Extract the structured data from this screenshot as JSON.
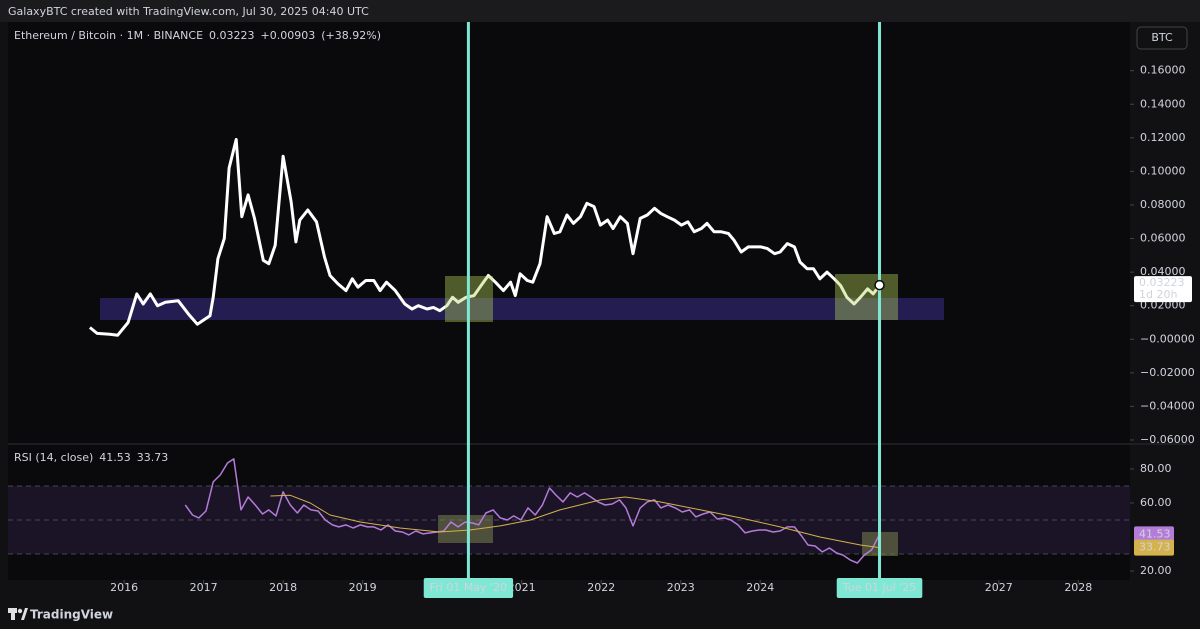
{
  "header": {
    "title": "GalaxyBTC created with TradingView.com, Jul 30, 2025 04:40 UTC"
  },
  "watermark": "TradingView",
  "chart_data": [
    {
      "type": "line",
      "currency": "BTC",
      "change": "+0.00903",
      "change_pct": "(+38.92%)",
      "countdown": "1d 20h",
      "series": [
        {
          "name": "Ethereum / Bitcoin · 1M · BINANCE",
          "color": "#ffffff",
          "x": [
            2015.57,
            2015.66,
            2015.82,
            2015.92,
            2016.05,
            2016.16,
            2016.24,
            2016.33,
            2016.42,
            2016.52,
            2016.68,
            2016.81,
            2016.92,
            2017.08,
            2017.12,
            2017.18,
            2017.26,
            2017.32,
            2017.41,
            2017.48,
            2017.56,
            2017.64,
            2017.75,
            2017.82,
            2017.9,
            2018.0,
            2018.1,
            2018.16,
            2018.21,
            2018.31,
            2018.42,
            2018.52,
            2018.59,
            2018.69,
            2018.79,
            2018.87,
            2018.94,
            2019.04,
            2019.14,
            2019.22,
            2019.3,
            2019.41,
            2019.53,
            2019.62,
            2019.7,
            2019.81,
            2019.89,
            2019.97,
            2020.06,
            2020.13,
            2020.2,
            2020.3,
            2020.4,
            2020.49,
            2020.58,
            2020.67,
            2020.77,
            2020.86,
            2020.92,
            2020.98,
            2021.07,
            2021.14,
            2021.23,
            2021.32,
            2021.41,
            2021.48,
            2021.57,
            2021.65,
            2021.74,
            2021.82,
            2021.91,
            2021.99,
            2022.08,
            2022.15,
            2022.24,
            2022.33,
            2022.4,
            2022.49,
            2022.58,
            2022.67,
            2022.75,
            2022.83,
            2022.92,
            2023.01,
            2023.09,
            2023.17,
            2023.26,
            2023.33,
            2023.42,
            2023.51,
            2023.6,
            2023.67,
            2023.76,
            2023.85,
            2023.92,
            2024.01,
            2024.09,
            2024.18,
            2024.25,
            2024.34,
            2024.43,
            2024.5,
            2024.59,
            2024.67,
            2024.75,
            2024.84,
            2024.93,
            2025.01,
            2025.09,
            2025.18,
            2025.26,
            2025.35,
            2025.42,
            2025.5
          ],
          "values": [
            0.007,
            0.0035,
            0.003,
            0.0024,
            0.01,
            0.027,
            0.021,
            0.027,
            0.02,
            0.022,
            0.023,
            0.015,
            0.009,
            0.014,
            0.025,
            0.048,
            0.06,
            0.102,
            0.119,
            0.073,
            0.086,
            0.072,
            0.047,
            0.045,
            0.056,
            0.109,
            0.082,
            0.058,
            0.071,
            0.077,
            0.07,
            0.049,
            0.038,
            0.033,
            0.029,
            0.036,
            0.031,
            0.035,
            0.035,
            0.029,
            0.034,
            0.029,
            0.021,
            0.018,
            0.02,
            0.018,
            0.019,
            0.017,
            0.02,
            0.025,
            0.022,
            0.025,
            0.026,
            0.032,
            0.038,
            0.034,
            0.029,
            0.034,
            0.026,
            0.039,
            0.035,
            0.034,
            0.045,
            0.073,
            0.063,
            0.064,
            0.074,
            0.069,
            0.073,
            0.081,
            0.079,
            0.068,
            0.071,
            0.066,
            0.073,
            0.069,
            0.051,
            0.072,
            0.074,
            0.078,
            0.075,
            0.073,
            0.071,
            0.068,
            0.07,
            0.064,
            0.066,
            0.069,
            0.064,
            0.064,
            0.063,
            0.059,
            0.052,
            0.055,
            0.055,
            0.055,
            0.054,
            0.051,
            0.052,
            0.057,
            0.055,
            0.046,
            0.042,
            0.042,
            0.036,
            0.04,
            0.036,
            0.032,
            0.025,
            0.021,
            0.025,
            0.03,
            0.027,
            0.03223
          ]
        }
      ],
      "xlim": [
        2014.54,
        2028.65
      ],
      "xticks": [
        2016,
        2017,
        2018,
        2019,
        2021,
        2022,
        2023,
        2024,
        2027,
        2028
      ],
      "ylim": [
        -0.0618,
        0.189
      ],
      "yticks": [
        {
          "value": 0.16,
          "label": "0.16000"
        },
        {
          "value": 0.14,
          "label": "0.14000"
        },
        {
          "value": 0.12,
          "label": "0.12000"
        },
        {
          "value": 0.1,
          "label": "0.10000"
        },
        {
          "value": 0.08,
          "label": "0.08000"
        },
        {
          "value": 0.06,
          "label": "0.06000"
        },
        {
          "value": 0.04,
          "label": "0.04000"
        },
        {
          "value": 0.02,
          "label": "0.02000"
        },
        {
          "value": 0,
          "label": "−0.00000"
        },
        {
          "value": -0.02,
          "label": "−0.02000"
        },
        {
          "value": -0.04,
          "label": "−0.04000"
        },
        {
          "value": -0.06,
          "label": "−0.06000"
        }
      ],
      "grid": false,
      "markers": [
        {
          "x": 2020.33,
          "label": "Fri 01 May '20"
        },
        {
          "x": 2025.5,
          "label": "Tue 01 Jul '25"
        }
      ]
    },
    {
      "type": "line",
      "title": "RSI (14, close)",
      "series": [
        {
          "color": "#b57bd8",
          "x": [
            2016.77,
            2016.86,
            2016.94,
            2017.03,
            2017.12,
            2017.21,
            2017.3,
            2017.38,
            2017.47,
            2017.56,
            2017.65,
            2017.74,
            2017.82,
            2017.91,
            2018.0,
            2018.09,
            2018.18,
            2018.26,
            2018.35,
            2018.44,
            2018.53,
            2018.62,
            2018.7,
            2018.79,
            2018.88,
            2018.97,
            2019.06,
            2019.14,
            2019.23,
            2019.32,
            2019.41,
            2019.5,
            2019.58,
            2019.67,
            2019.76,
            2019.85,
            2019.94,
            2020.02,
            2020.11,
            2020.2,
            2020.29,
            2020.38,
            2020.46,
            2020.55,
            2020.64,
            2020.73,
            2020.82,
            2020.9,
            2020.99,
            2021.08,
            2021.17,
            2021.26,
            2021.35,
            2021.43,
            2021.52,
            2021.61,
            2021.7,
            2021.79,
            2021.87,
            2021.96,
            2022.05,
            2022.14,
            2022.23,
            2022.31,
            2022.4,
            2022.49,
            2022.58,
            2022.67,
            2022.75,
            2022.84,
            2022.93,
            2023.02,
            2023.11,
            2023.19,
            2023.28,
            2023.37,
            2023.46,
            2023.55,
            2023.63,
            2023.72,
            2023.81,
            2023.9,
            2023.99,
            2024.07,
            2024.16,
            2024.25,
            2024.34,
            2024.43,
            2024.52,
            2024.6,
            2024.69,
            2024.78,
            2024.87,
            2024.96,
            2025.04,
            2025.13,
            2025.22,
            2025.31,
            2025.4,
            2025.5
          ],
          "values": [
            58.8,
            52.9,
            51.2,
            55.3,
            72.4,
            76.5,
            83.5,
            85.9,
            55.9,
            63.5,
            58.8,
            53.5,
            55.9,
            52.4,
            66.5,
            58.8,
            54.1,
            58.8,
            55.9,
            55.3,
            50.0,
            47.1,
            45.9,
            47.1,
            45.3,
            47.1,
            45.9,
            45.9,
            44.1,
            47.1,
            43.5,
            42.9,
            41.2,
            43.5,
            41.8,
            42.4,
            42.9,
            43.5,
            48.8,
            45.9,
            48.8,
            48.2,
            47.1,
            54.1,
            55.9,
            51.2,
            50.0,
            52.4,
            50.0,
            57.1,
            52.9,
            58.8,
            68.8,
            64.7,
            60.6,
            65.9,
            63.5,
            65.9,
            63.5,
            60.6,
            58.8,
            59.4,
            61.8,
            57.1,
            46.5,
            57.1,
            60.6,
            61.8,
            57.1,
            58.8,
            57.1,
            54.7,
            55.9,
            51.8,
            53.5,
            54.7,
            50.6,
            51.2,
            50.0,
            47.1,
            42.4,
            43.5,
            44.1,
            44.1,
            42.9,
            43.5,
            45.9,
            45.9,
            40.6,
            35.3,
            34.7,
            31.2,
            33.5,
            30.6,
            29.4,
            26.5,
            24.7,
            29.4,
            32.4,
            41.53
          ]
        },
        {
          "color": "#d4b24c",
          "x": [
            2017.84,
            2018.09,
            2018.34,
            2018.59,
            2018.97,
            2019.47,
            2019.97,
            2020.35,
            2020.73,
            2021.11,
            2021.48,
            2021.99,
            2022.3,
            2022.74,
            2023.25,
            2023.75,
            2024.25,
            2024.75,
            2025.26,
            2025.5
          ],
          "values": [
            64.1,
            64.5,
            60.0,
            52.9,
            48.8,
            45.3,
            42.9,
            44.1,
            46.5,
            50.0,
            55.9,
            61.8,
            63.5,
            60.6,
            55.9,
            51.2,
            45.9,
            40.0,
            35.3,
            33.73
          ]
        }
      ],
      "xlim": [
        2014.54,
        2028.65
      ],
      "ylim": [
        14.7,
        93.5
      ],
      "yticks": [
        {
          "value": 80,
          "label": "80.00"
        },
        {
          "value": 60,
          "label": "60.00"
        },
        {
          "value": 20,
          "label": "20.00"
        }
      ],
      "levels": [
        70,
        50,
        30
      ]
    }
  ]
}
